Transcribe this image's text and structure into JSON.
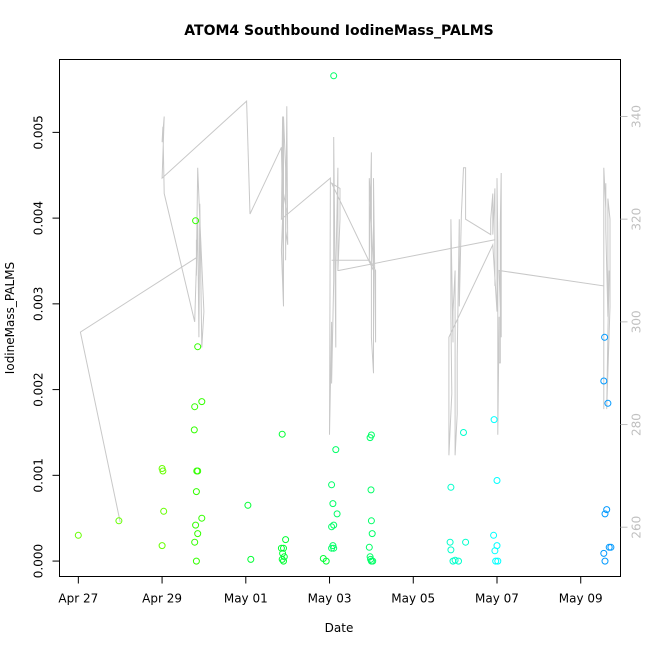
{
  "chart_data": {
    "type": "scatter",
    "title": "ATOM4 Southbound IodineMass_PALMS",
    "xlabel": "Date",
    "ylabel": "IodineMass_PALMS",
    "x_ticks": [
      {
        "x": 0,
        "label": "Apr 27"
      },
      {
        "x": 2,
        "label": "Apr 29"
      },
      {
        "x": 4,
        "label": "May 01"
      },
      {
        "x": 6,
        "label": "May 03"
      },
      {
        "x": 8,
        "label": "May 05"
      },
      {
        "x": 10,
        "label": "May 07"
      },
      {
        "x": 12,
        "label": "May 09"
      }
    ],
    "y_ticks": [
      {
        "y": 0.0,
        "label": "0.000"
      },
      {
        "y": 0.001,
        "label": "0.001"
      },
      {
        "y": 0.002,
        "label": "0.002"
      },
      {
        "y": 0.003,
        "label": "0.003"
      },
      {
        "y": 0.004,
        "label": "0.004"
      },
      {
        "y": 0.005,
        "label": "0.005"
      }
    ],
    "y2_ticks": [
      {
        "y": 260,
        "label": "260"
      },
      {
        "y": 280,
        "label": "280"
      },
      {
        "y": 300,
        "label": "300"
      },
      {
        "y": 320,
        "label": "320"
      },
      {
        "y": 340,
        "label": "340"
      }
    ],
    "xlim": [
      -0.45,
      12.95
    ],
    "ylim": [
      -0.00018,
      0.00585
    ],
    "y2lim": [
      250.4,
      351.1
    ],
    "grid": false,
    "legend": "none",
    "scatter_points": [
      [
        0.0,
        0.0003,
        "#66ff00"
      ],
      [
        0.97,
        0.00047,
        "#66ff00"
      ],
      [
        2.0,
        0.00108,
        "#66ff00"
      ],
      [
        2.02,
        0.00105,
        "#66ff00"
      ],
      [
        2.04,
        0.00058,
        "#66ff00"
      ],
      [
        2.0,
        0.00018,
        "#66ff00"
      ],
      [
        2.8,
        0.00397,
        "#33ff00"
      ],
      [
        2.85,
        0.0025,
        "#33ff00"
      ],
      [
        2.95,
        0.00186,
        "#33ff00"
      ],
      [
        2.78,
        0.0018,
        "#33ff00"
      ],
      [
        2.77,
        0.00153,
        "#33ff00"
      ],
      [
        2.83,
        0.00105,
        "#33ff00"
      ],
      [
        2.85,
        0.00105,
        "#33ff00"
      ],
      [
        2.82,
        0.00081,
        "#33ff00"
      ],
      [
        2.95,
        0.0005,
        "#33ff00"
      ],
      [
        2.8,
        0.00042,
        "#33ff00"
      ],
      [
        2.85,
        0.00032,
        "#33ff00"
      ],
      [
        2.78,
        0.00022,
        "#33ff00"
      ],
      [
        2.82,
        0.0,
        "#33ff00"
      ],
      [
        4.05,
        0.00065,
        "#00ff33"
      ],
      [
        4.12,
        2e-05,
        "#00ff33"
      ],
      [
        4.87,
        0.00148,
        "#00ff33"
      ],
      [
        4.95,
        0.00025,
        "#00ff33"
      ],
      [
        4.9,
        0.00015,
        "#00ff33"
      ],
      [
        4.85,
        0.00015,
        "#00ff33"
      ],
      [
        4.88,
        9e-05,
        "#00ff33"
      ],
      [
        4.92,
        5e-05,
        "#00ff33"
      ],
      [
        4.87,
        2e-05,
        "#00ff33"
      ],
      [
        4.9,
        0.0,
        "#00ff33"
      ],
      [
        5.85,
        3e-05,
        "#00ff33"
      ],
      [
        5.92,
        0.0,
        "#00ff33"
      ],
      [
        6.1,
        0.00566,
        "#00ff66"
      ],
      [
        6.15,
        0.0013,
        "#00ff66"
      ],
      [
        6.05,
        0.00089,
        "#00ff66"
      ],
      [
        6.08,
        0.00067,
        "#00ff66"
      ],
      [
        6.18,
        0.00055,
        "#00ff66"
      ],
      [
        6.1,
        0.00042,
        "#00ff66"
      ],
      [
        6.05,
        0.0004,
        "#00ff66"
      ],
      [
        6.08,
        0.00018,
        "#00ff66"
      ],
      [
        6.1,
        0.00015,
        "#00ff66"
      ],
      [
        6.05,
        0.00015,
        "#00ff66"
      ],
      [
        6.97,
        0.00144,
        "#00ff66"
      ],
      [
        7.0,
        0.00147,
        "#00ff66"
      ],
      [
        6.99,
        0.00083,
        "#00ff66"
      ],
      [
        7.0,
        0.00047,
        "#00ff66"
      ],
      [
        7.02,
        0.00032,
        "#00ff66"
      ],
      [
        6.95,
        0.00016,
        "#00ff66"
      ],
      [
        6.97,
        5e-05,
        "#00ff66"
      ],
      [
        6.98,
        2e-05,
        "#00ff66"
      ],
      [
        7.0,
        0.0,
        "#00ff66"
      ],
      [
        7.03,
        0.0,
        "#00ff66"
      ],
      [
        8.9,
        0.00086,
        "#00ffcc"
      ],
      [
        9.2,
        0.0015,
        "#00ffcc"
      ],
      [
        8.88,
        0.00022,
        "#00ffcc"
      ],
      [
        9.25,
        0.00022,
        "#00ffcc"
      ],
      [
        8.9,
        0.00013,
        "#00ffcc"
      ],
      [
        8.95,
        0.0,
        "#00ffcc"
      ],
      [
        9.0,
        1e-05,
        "#00ffcc"
      ],
      [
        9.08,
        0.0,
        "#00ffcc"
      ],
      [
        9.93,
        0.00165,
        "#00ffff"
      ],
      [
        10.0,
        0.00094,
        "#00ffff"
      ],
      [
        9.92,
        0.0003,
        "#00ffff"
      ],
      [
        10.0,
        0.00018,
        "#00ffff"
      ],
      [
        9.95,
        0.00012,
        "#00ffff"
      ],
      [
        9.97,
        0.0,
        "#00ffff"
      ],
      [
        10.02,
        0.0,
        "#00ffff"
      ],
      [
        12.57,
        0.00261,
        "#0099ff"
      ],
      [
        12.55,
        0.0021,
        "#0099ff"
      ],
      [
        12.65,
        0.00184,
        "#0099ff"
      ],
      [
        12.62,
        0.0006,
        "#0099ff"
      ],
      [
        12.58,
        0.00055,
        "#0099ff"
      ],
      [
        12.72,
        0.00016,
        "#0099ff"
      ],
      [
        12.68,
        0.00016,
        "#0099ff"
      ],
      [
        12.55,
        9e-05,
        "#0099ff"
      ],
      [
        12.58,
        0.0,
        "#0099ff"
      ]
    ],
    "line_series": [
      [
        0.05,
        298
      ],
      [
        1.0,
        261
      ],
      [
        0.05,
        298
      ],
      [
        2.82,
        312.5
      ],
      [
        2.82,
        316
      ],
      [
        2.82,
        309
      ],
      [
        2.85,
        320
      ],
      [
        2.88,
        297
      ],
      [
        2.9,
        323
      ],
      [
        2.95,
        295
      ],
      [
        3.0,
        302
      ],
      [
        2.9,
        320
      ],
      [
        2.85,
        330
      ],
      [
        2.82,
        311
      ],
      [
        2.78,
        300
      ],
      [
        2.05,
        325
      ],
      [
        2.02,
        338
      ],
      [
        2.0,
        335
      ],
      [
        2.05,
        340
      ],
      [
        2.0,
        328
      ],
      [
        4.02,
        343
      ],
      [
        4.1,
        321
      ],
      [
        4.85,
        334
      ],
      [
        4.88,
        322
      ],
      [
        4.9,
        303
      ],
      [
        4.9,
        340
      ],
      [
        4.95,
        330
      ],
      [
        4.95,
        314
      ],
      [
        4.98,
        340
      ],
      [
        4.95,
        312
      ],
      [
        4.98,
        342
      ],
      [
        5.0,
        315
      ],
      [
        4.95,
        318
      ],
      [
        4.97,
        322
      ],
      [
        4.9,
        325
      ],
      [
        4.85,
        314
      ],
      [
        4.9,
        303
      ],
      [
        4.88,
        340
      ],
      [
        4.85,
        320
      ],
      [
        6.02,
        328
      ],
      [
        6.0,
        278
      ],
      [
        6.05,
        300
      ],
      [
        6.05,
        288
      ],
      [
        6.1,
        308
      ],
      [
        6.1,
        336
      ],
      [
        6.15,
        295
      ],
      [
        6.15,
        310
      ],
      [
        6.2,
        330
      ],
      [
        6.2,
        310
      ],
      [
        6.25,
        320
      ],
      [
        6.25,
        326
      ],
      [
        6.05,
        327
      ],
      [
        7.05,
        310
      ],
      [
        6.95,
        328
      ],
      [
        6.95,
        312
      ],
      [
        7.0,
        333
      ],
      [
        7.0,
        297
      ],
      [
        7.05,
        290
      ],
      [
        7.05,
        328
      ],
      [
        7.1,
        296
      ],
      [
        7.1,
        310
      ],
      [
        6.95,
        312
      ],
      [
        6.05,
        312
      ],
      [
        6.2,
        312
      ],
      [
        6.2,
        310
      ],
      [
        6.22,
        310
      ],
      [
        9.95,
        316
      ],
      [
        9.95,
        307
      ],
      [
        9.95,
        326
      ],
      [
        9.9,
        317
      ],
      [
        9.9,
        325
      ],
      [
        9.85,
        320
      ],
      [
        9.85,
        317
      ],
      [
        9.25,
        320
      ],
      [
        9.25,
        330
      ],
      [
        9.2,
        330
      ],
      [
        9.15,
        321
      ],
      [
        9.1,
        303
      ],
      [
        9.1,
        320
      ],
      [
        9.05,
        293
      ],
      [
        9.05,
        282
      ],
      [
        9.0,
        274
      ],
      [
        9.0,
        310
      ],
      [
        8.95,
        302
      ],
      [
        8.95,
        296
      ],
      [
        8.9,
        320
      ],
      [
        8.9,
        301
      ],
      [
        8.92,
        286
      ],
      [
        8.85,
        274
      ],
      [
        8.85,
        297
      ],
      [
        9.9,
        315
      ],
      [
        10.0,
        302
      ],
      [
        10.0,
        328
      ],
      [
        10.02,
        316
      ],
      [
        10.02,
        278
      ],
      [
        10.05,
        301
      ],
      [
        10.05,
        292
      ],
      [
        10.08,
        292
      ],
      [
        10.08,
        319
      ],
      [
        10.1,
        329
      ],
      [
        10.1,
        297
      ],
      [
        10.05,
        310
      ],
      [
        12.55,
        307
      ],
      [
        12.55,
        283
      ],
      [
        12.55,
        330
      ],
      [
        12.6,
        322
      ],
      [
        12.6,
        327
      ],
      [
        12.6,
        318
      ],
      [
        12.65,
        301
      ],
      [
        12.65,
        324
      ],
      [
        12.7,
        320
      ],
      [
        12.7,
        303
      ],
      [
        12.62,
        283
      ],
      [
        12.65,
        298
      ],
      [
        12.68,
        310
      ]
    ],
    "line_color": "#c8c8c8"
  }
}
